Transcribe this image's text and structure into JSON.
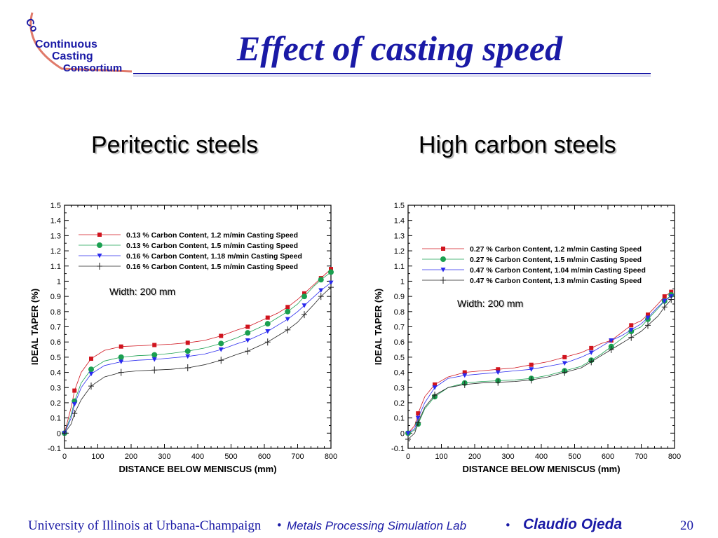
{
  "header": {
    "title": "Effect of casting speed",
    "logo_lines": [
      "Continuous",
      "Casting",
      "Consortium"
    ]
  },
  "colors": {
    "title": "#1a1aa6",
    "red": "#d0141e",
    "green": "#1aa050",
    "blue": "#2a2aee",
    "black": "#222222"
  },
  "panels": {
    "left_heading": "Peritectic steels",
    "right_heading": "High carbon steels"
  },
  "chart_data": [
    {
      "type": "line",
      "xlabel": "DISTANCE BELOW MENISCUS (mm)",
      "ylabel": "IDEAL TAPER (%)",
      "xlim": [
        0,
        800
      ],
      "ylim": [
        -0.1,
        1.5
      ],
      "xticks": [
        0,
        100,
        200,
        300,
        400,
        500,
        600,
        700,
        800
      ],
      "yticks": [
        -0.1,
        0,
        0.1,
        0.2,
        0.3,
        0.4,
        0.5,
        0.6,
        0.7,
        0.8,
        0.9,
        1,
        1.1,
        1.2,
        1.3,
        1.4,
        1.5
      ],
      "annotation": "Width: 200 mm",
      "legend_position": "top",
      "series": [
        {
          "name": "0.13 % Carbon Content, 1.2 m/min Casting Speed",
          "color": "red",
          "marker": "square",
          "x": [
            0,
            20,
            30,
            50,
            80,
            120,
            170,
            220,
            270,
            320,
            370,
            420,
            470,
            520,
            550,
            580,
            610,
            640,
            670,
            700,
            720,
            750,
            770,
            800
          ],
          "y": [
            0,
            0.17,
            0.28,
            0.4,
            0.49,
            0.545,
            0.57,
            0.575,
            0.58,
            0.585,
            0.595,
            0.61,
            0.64,
            0.68,
            0.7,
            0.73,
            0.76,
            0.79,
            0.83,
            0.88,
            0.92,
            0.98,
            1.02,
            1.08
          ]
        },
        {
          "name": "0.13 % Carbon Content, 1.5 m/min Casting Speed",
          "color": "green",
          "marker": "circle",
          "x": [
            0,
            20,
            30,
            50,
            80,
            120,
            170,
            220,
            270,
            320,
            370,
            420,
            470,
            520,
            550,
            580,
            610,
            640,
            670,
            700,
            720,
            750,
            770,
            800
          ],
          "y": [
            0,
            0.12,
            0.21,
            0.33,
            0.42,
            0.475,
            0.5,
            0.51,
            0.515,
            0.525,
            0.54,
            0.56,
            0.59,
            0.63,
            0.66,
            0.69,
            0.72,
            0.76,
            0.8,
            0.85,
            0.9,
            0.97,
            1.01,
            1.06
          ]
        },
        {
          "name": "0.16 % Carbon Content, 1.18 m/min Casting Speed",
          "color": "blue",
          "marker": "triangle",
          "x": [
            0,
            20,
            30,
            50,
            80,
            120,
            170,
            220,
            270,
            320,
            370,
            420,
            470,
            520,
            550,
            580,
            610,
            640,
            670,
            700,
            720,
            750,
            770,
            800
          ],
          "y": [
            0,
            0.1,
            0.19,
            0.3,
            0.39,
            0.445,
            0.47,
            0.48,
            0.485,
            0.495,
            0.505,
            0.52,
            0.55,
            0.59,
            0.61,
            0.64,
            0.67,
            0.71,
            0.75,
            0.8,
            0.84,
            0.9,
            0.94,
            0.99
          ]
        },
        {
          "name": "0.16 % Carbon Content, 1.5 m/min Casting Speed",
          "color": "black",
          "marker": "plus",
          "x": [
            0,
            20,
            30,
            50,
            80,
            120,
            170,
            220,
            270,
            320,
            370,
            420,
            470,
            520,
            550,
            580,
            610,
            640,
            670,
            700,
            720,
            750,
            770,
            800
          ],
          "y": [
            0,
            0.06,
            0.13,
            0.22,
            0.31,
            0.37,
            0.4,
            0.41,
            0.415,
            0.42,
            0.43,
            0.45,
            0.48,
            0.52,
            0.54,
            0.57,
            0.6,
            0.64,
            0.68,
            0.73,
            0.78,
            0.85,
            0.9,
            0.96
          ]
        }
      ]
    },
    {
      "type": "line",
      "xlabel": "DISTANCE BELOW MENISCUS (mm)",
      "ylabel": "IDEAL TAPER (%)",
      "xlim": [
        0,
        800
      ],
      "ylim": [
        -0.1,
        1.5
      ],
      "xticks": [
        0,
        100,
        200,
        300,
        400,
        500,
        600,
        700,
        800
      ],
      "yticks": [
        -0.1,
        0,
        0.1,
        0.2,
        0.3,
        0.4,
        0.5,
        0.6,
        0.7,
        0.8,
        0.9,
        1,
        1.1,
        1.2,
        1.3,
        1.4,
        1.5
      ],
      "annotation": "Width: 200 mm",
      "legend_position": "top-right",
      "series": [
        {
          "name": "0.27 % Carbon Content, 1.2 m/min Casting Speed",
          "color": "red",
          "marker": "square",
          "x": [
            0,
            20,
            30,
            50,
            80,
            120,
            170,
            220,
            270,
            320,
            370,
            420,
            470,
            520,
            550,
            580,
            610,
            640,
            670,
            700,
            720,
            750,
            770,
            790
          ],
          "y": [
            0,
            0.05,
            0.13,
            0.24,
            0.32,
            0.37,
            0.4,
            0.41,
            0.42,
            0.43,
            0.45,
            0.47,
            0.5,
            0.53,
            0.56,
            0.59,
            0.61,
            0.66,
            0.71,
            0.74,
            0.78,
            0.85,
            0.9,
            0.93
          ]
        },
        {
          "name": "0.27 % Carbon Content, 1.5 m/min Casting Speed",
          "color": "green",
          "marker": "circle",
          "x": [
            0,
            20,
            30,
            50,
            80,
            120,
            170,
            220,
            270,
            320,
            370,
            420,
            470,
            520,
            550,
            580,
            610,
            640,
            670,
            700,
            720,
            750,
            770,
            790
          ],
          "y": [
            0,
            0.02,
            0.06,
            0.16,
            0.24,
            0.3,
            0.33,
            0.34,
            0.345,
            0.35,
            0.36,
            0.38,
            0.41,
            0.44,
            0.48,
            0.52,
            0.57,
            0.62,
            0.67,
            0.7,
            0.75,
            0.82,
            0.87,
            0.91
          ]
        },
        {
          "name": "0.47 % Carbon Content, 1.04 m/min Casting Speed",
          "color": "blue",
          "marker": "triangle",
          "x": [
            0,
            20,
            30,
            50,
            80,
            120,
            170,
            220,
            270,
            320,
            370,
            420,
            470,
            520,
            550,
            580,
            610,
            640,
            670,
            700,
            720,
            750,
            770,
            790
          ],
          "y": [
            0,
            0.03,
            0.1,
            0.2,
            0.3,
            0.36,
            0.38,
            0.39,
            0.4,
            0.41,
            0.42,
            0.44,
            0.46,
            0.5,
            0.53,
            0.57,
            0.61,
            0.64,
            0.68,
            0.72,
            0.76,
            0.83,
            0.87,
            0.9
          ]
        },
        {
          "name": "0.47 % Carbon Content, 1.3 m/min Casting Speed",
          "color": "black",
          "marker": "plus",
          "x": [
            0,
            20,
            30,
            50,
            80,
            120,
            170,
            220,
            270,
            320,
            370,
            420,
            470,
            520,
            550,
            580,
            610,
            640,
            670,
            700,
            720,
            750,
            770,
            790
          ],
          "y": [
            -0.04,
            0.0,
            0.07,
            0.17,
            0.25,
            0.3,
            0.32,
            0.33,
            0.335,
            0.34,
            0.35,
            0.37,
            0.4,
            0.43,
            0.47,
            0.51,
            0.55,
            0.59,
            0.63,
            0.67,
            0.71,
            0.77,
            0.83,
            0.88
          ]
        }
      ]
    }
  ],
  "footer": {
    "university": "University of Illinois at Urbana-Champaign",
    "sep1": "•",
    "lab": "Metals Processing Simulation Lab",
    "sep2": "•",
    "author": "Claudio Ojeda",
    "page": "20"
  }
}
